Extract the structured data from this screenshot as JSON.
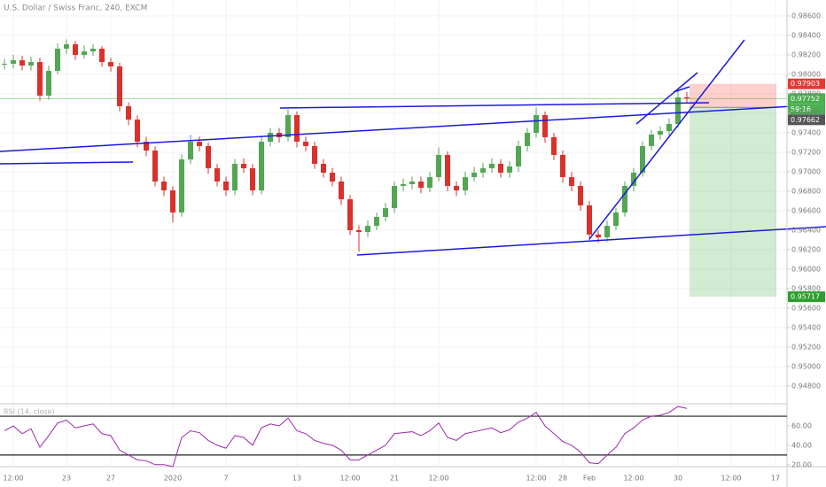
{
  "chart_data": {
    "type": "candlestick",
    "title": "U.S. Dollar / Swiss Franc, 240, EXCM",
    "categories": [
      null,
      "12:00",
      null,
      null,
      null,
      null,
      null,
      "23",
      null,
      null,
      null,
      null,
      "27",
      null,
      null,
      null,
      null,
      null,
      null,
      "2020",
      null,
      null,
      null,
      null,
      null,
      "7",
      null,
      null,
      null,
      null,
      null,
      null,
      null,
      "13",
      null,
      null,
      null,
      null,
      null,
      "12:00",
      null,
      null,
      null,
      null,
      "21",
      null,
      null,
      null,
      null,
      "12:00",
      null,
      null,
      null,
      null,
      null,
      null,
      null,
      null,
      null,
      null,
      "12:00",
      null,
      null,
      "28",
      null,
      null,
      "Feb",
      null,
      null,
      null,
      null,
      "12:00",
      null,
      null,
      null,
      null,
      "30",
      null,
      null,
      null,
      null,
      null,
      "12:00",
      null,
      null,
      null,
      null,
      "17"
    ],
    "open": [
      0.981,
      0.98109,
      0.98145,
      0.98091,
      0.98127,
      0.97782,
      0.98036,
      0.98264,
      0.98309,
      0.982,
      0.98236,
      0.98264,
      0.98127,
      0.98082,
      0.97673,
      0.97536,
      0.97309,
      0.97218,
      0.969,
      0.96809,
      0.96582,
      0.97127,
      0.97309,
      0.97264,
      0.97036,
      0.969,
      0.96809,
      0.97082,
      0.97036,
      0.96809,
      0.97309,
      0.974,
      0.97355,
      0.97582,
      0.97309,
      0.97264,
      0.97082,
      0.96991,
      0.969,
      0.96718,
      0.964,
      0.96382,
      0.96445,
      0.96536,
      0.96627,
      0.96855,
      0.96873,
      0.969,
      0.96836,
      0.96945,
      0.97173,
      0.96855,
      0.96809,
      0.96945,
      0.96991,
      0.97036,
      0.97082,
      0.96991,
      0.97055,
      0.97264,
      0.974,
      0.97582,
      0.97355,
      0.97173,
      0.96945,
      0.96855,
      0.96655,
      0.96355,
      0.96327,
      0.96445,
      0.96582,
      0.96855,
      0.96991,
      0.97264,
      0.97382,
      0.97418,
      0.97491,
      0.97764,
      null,
      null,
      null,
      null,
      null,
      null,
      null,
      null,
      null,
      null
    ],
    "high": [
      0.9816,
      0.982,
      0.9819,
      0.9818,
      0.9817,
      0.9809,
      0.9832,
      0.9836,
      0.9834,
      0.983,
      0.9831,
      0.9829,
      0.9817,
      0.9812,
      0.9771,
      0.9758,
      0.9736,
      0.9726,
      0.9695,
      0.9685,
      0.9718,
      0.9738,
      0.9736,
      0.973,
      0.9708,
      0.9695,
      0.9713,
      0.9714,
      0.9708,
      0.9736,
      0.9745,
      0.9745,
      0.9764,
      0.9762,
      0.9736,
      0.9731,
      0.9713,
      0.9704,
      0.9695,
      0.9676,
      0.9645,
      0.965,
      0.9658,
      0.9668,
      0.969,
      0.9693,
      0.9695,
      0.9695,
      0.97,
      0.9725,
      0.9721,
      0.969,
      0.97,
      0.9705,
      0.9709,
      0.9714,
      0.9713,
      0.9711,
      0.9732,
      0.9745,
      0.9766,
      0.9762,
      0.974,
      0.9722,
      0.97,
      0.969,
      0.967,
      0.964,
      0.965,
      0.9663,
      0.969,
      0.9704,
      0.9731,
      0.9743,
      0.9747,
      0.9755,
      0.9783,
      0.9782,
      null,
      null,
      null,
      null,
      null,
      null,
      null,
      null,
      null,
      null
    ],
    "low": [
      0.9805,
      0.9806,
      0.9804,
      0.9804,
      0.9773,
      0.9774,
      0.98,
      0.9821,
      0.9815,
      0.9816,
      0.9819,
      0.9808,
      0.9803,
      0.9762,
      0.9748,
      0.9725,
      0.9716,
      0.9685,
      0.9675,
      0.9648,
      0.9654,
      0.9708,
      0.9721,
      0.9698,
      0.9685,
      0.9675,
      0.9676,
      0.9699,
      0.9676,
      0.9677,
      0.9726,
      0.973,
      0.9731,
      0.9725,
      0.9721,
      0.9703,
      0.9694,
      0.9685,
      0.9666,
      0.9635,
      0.9618,
      0.9633,
      0.964,
      0.9649,
      0.9658,
      0.968,
      0.9682,
      0.9678,
      0.9679,
      0.969,
      0.968,
      0.9675,
      0.9676,
      0.969,
      0.9694,
      0.9699,
      0.9694,
      0.9694,
      0.97,
      0.9721,
      0.9735,
      0.973,
      0.9712,
      0.9689,
      0.968,
      0.966,
      0.963,
      0.9627,
      0.9628,
      0.964,
      0.9654,
      0.968,
      0.9695,
      0.9722,
      0.9733,
      0.9737,
      0.9745,
      0.977,
      null,
      null,
      null,
      null,
      null,
      null,
      null,
      null,
      null,
      null
    ],
    "close": [
      0.98109,
      0.98145,
      0.98091,
      0.98127,
      0.97782,
      0.98036,
      0.98264,
      0.98309,
      0.982,
      0.98236,
      0.98264,
      0.98127,
      0.98082,
      0.97673,
      0.97536,
      0.97309,
      0.97218,
      0.969,
      0.96809,
      0.96582,
      0.97127,
      0.97309,
      0.97264,
      0.97036,
      0.969,
      0.96809,
      0.97082,
      0.97036,
      0.96809,
      0.97309,
      0.974,
      0.97355,
      0.97582,
      0.97309,
      0.97264,
      0.97082,
      0.96991,
      0.969,
      0.96718,
      0.964,
      0.96382,
      0.96445,
      0.96536,
      0.96627,
      0.96855,
      0.96873,
      0.969,
      0.96836,
      0.96945,
      0.97173,
      0.96855,
      0.96809,
      0.96945,
      0.96991,
      0.97036,
      0.97082,
      0.96991,
      0.97055,
      0.97264,
      0.974,
      0.97582,
      0.97355,
      0.97173,
      0.96945,
      0.96855,
      0.96655,
      0.96355,
      0.96327,
      0.96445,
      0.96582,
      0.96855,
      0.96991,
      0.97264,
      0.97382,
      0.97418,
      0.97491,
      0.97764,
      0.97752,
      null,
      null,
      null,
      null,
      null,
      null,
      null,
      null,
      null,
      null
    ],
    "up_color": "#53a653",
    "down_color": "#d9312b",
    "ylim": [
      0.94627,
      0.98764
    ],
    "yticks": [
      {
        "value": 0.986,
        "label": "0.98600"
      },
      {
        "value": 0.984,
        "label": "0.98400"
      },
      {
        "value": 0.982,
        "label": "0.98200"
      },
      {
        "value": 0.98,
        "label": "0.98000"
      },
      {
        "value": 0.978,
        "label": "0.97800"
      },
      {
        "value": 0.976,
        "label": "0.97600"
      },
      {
        "value": 0.974,
        "label": "0.97400"
      },
      {
        "value": 0.972,
        "label": "0.97200"
      },
      {
        "value": 0.97,
        "label": "0.97000"
      },
      {
        "value": 0.968,
        "label": "0.96800"
      },
      {
        "value": 0.966,
        "label": "0.96600"
      },
      {
        "value": 0.964,
        "label": "0.96400"
      },
      {
        "value": 0.962,
        "label": "0.96200"
      },
      {
        "value": 0.96,
        "label": "0.96000"
      },
      {
        "value": 0.958,
        "label": "0.95800"
      },
      {
        "value": 0.956,
        "label": "0.95600"
      },
      {
        "value": 0.954,
        "label": "0.95400"
      },
      {
        "value": 0.952,
        "label": "0.95200"
      },
      {
        "value": 0.95,
        "label": "0.95000"
      },
      {
        "value": 0.948,
        "label": "0.94800"
      }
    ],
    "grid": true,
    "last_price": 0.97752,
    "countdown": "59:16",
    "position": {
      "stop": 0.97903,
      "entry": 0.97662,
      "target": 0.95717
    },
    "rsi": {
      "title": "RSI (14, close)",
      "color": "#9c27b0",
      "values": [
        55,
        60,
        52,
        57,
        38,
        50,
        63,
        66,
        58,
        60,
        62,
        52,
        50,
        35,
        30,
        25,
        24,
        20,
        20,
        18,
        48,
        55,
        53,
        45,
        40,
        37,
        50,
        48,
        40,
        58,
        62,
        60,
        68,
        55,
        52,
        45,
        42,
        40,
        35,
        25,
        25,
        30,
        35,
        40,
        52,
        53,
        54,
        50,
        55,
        63,
        48,
        45,
        52,
        54,
        56,
        58,
        53,
        56,
        64,
        68,
        74,
        60,
        52,
        44,
        40,
        33,
        22,
        21,
        30,
        38,
        52,
        58,
        66,
        70,
        71,
        74,
        80,
        78,
        null,
        null,
        null,
        null,
        null,
        null,
        null,
        null,
        null,
        null
      ],
      "ylim": [
        18,
        81
      ],
      "yticks": [
        {
          "value": 60,
          "label": "60.00"
        },
        {
          "value": 40,
          "label": "40.00"
        },
        {
          "value": 20,
          "label": "20.00"
        }
      ],
      "levels": [
        70,
        30
      ]
    }
  }
}
